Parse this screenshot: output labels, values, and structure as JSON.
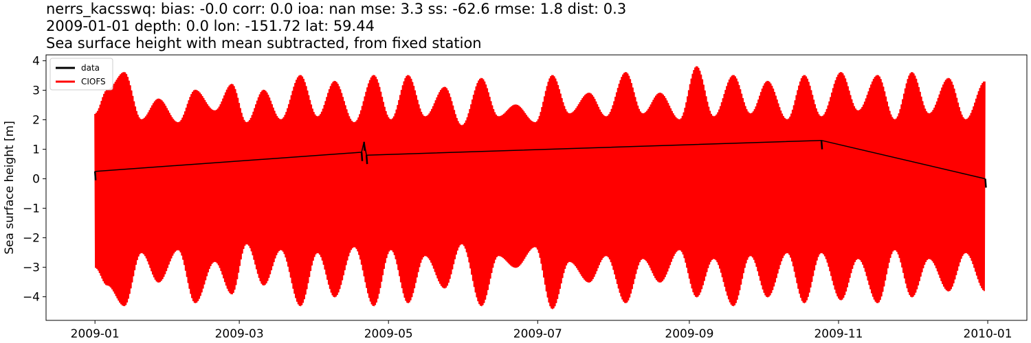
{
  "title_lines": [
    "nerrs_kacsswq: bias: -0.0  corr: 0.0  ioa: nan  mse: 3.3  ss: -62.6  rmse: 1.8  dist: 0.3",
    "2009-01-01 depth: 0.0 lon: -151.72 lat: 59.44",
    "Sea surface height with mean subtracted, from fixed station"
  ],
  "chart_data": {
    "type": "line",
    "ylabel": "Sea surface height [m]",
    "xlabel": "",
    "xlim": [
      "2008-12-12",
      "2010-01-17"
    ],
    "ylim": [
      -4.8,
      4.2
    ],
    "x_ticks": [
      "2009-01",
      "2009-03",
      "2009-05",
      "2009-07",
      "2009-09",
      "2009-11",
      "2010-01"
    ],
    "x_tick_dates": [
      "2009-01-01",
      "2009-03-01",
      "2009-05-01",
      "2009-07-01",
      "2009-09-01",
      "2009-11-01",
      "2010-01-01"
    ],
    "y_ticks": [
      -4,
      -3,
      -2,
      -1,
      0,
      1,
      2,
      3,
      4
    ],
    "legend": {
      "position": "top-left"
    },
    "series": [
      {
        "name": "data",
        "color": "#000000",
        "x": [
          "2009-01-01",
          "2009-04-20",
          "2009-04-21",
          "2009-04-22",
          "2009-10-25",
          "2009-12-31"
        ],
        "y": [
          0.25,
          0.9,
          1.25,
          0.8,
          1.3,
          0.0
        ]
      },
      {
        "name": "CIOFS",
        "color": "#ff0000",
        "x": [
          "2009-01-01",
          "2009-01-06",
          "2009-01-13",
          "2009-01-20",
          "2009-01-27",
          "2009-02-04",
          "2009-02-11",
          "2009-02-19",
          "2009-02-26",
          "2009-03-04",
          "2009-03-11",
          "2009-03-18",
          "2009-03-26",
          "2009-04-02",
          "2009-04-09",
          "2009-04-17",
          "2009-04-25",
          "2009-05-02",
          "2009-05-09",
          "2009-05-16",
          "2009-05-24",
          "2009-05-31",
          "2009-06-08",
          "2009-06-15",
          "2009-06-22",
          "2009-06-30",
          "2009-07-07",
          "2009-07-14",
          "2009-07-22",
          "2009-07-29",
          "2009-08-06",
          "2009-08-13",
          "2009-08-20",
          "2009-08-28",
          "2009-09-04",
          "2009-09-11",
          "2009-09-19",
          "2009-09-26",
          "2009-10-03",
          "2009-10-11",
          "2009-10-18",
          "2009-10-25",
          "2009-11-02",
          "2009-11-09",
          "2009-11-17",
          "2009-11-24",
          "2009-12-01",
          "2009-12-08",
          "2009-12-16",
          "2009-12-23",
          "2009-12-31"
        ],
        "y_max": [
          2.2,
          3.0,
          3.6,
          2.0,
          2.7,
          1.9,
          3.0,
          2.3,
          3.2,
          1.9,
          3.0,
          2.0,
          3.5,
          2.1,
          3.3,
          1.9,
          3.5,
          2.0,
          3.5,
          2.1,
          3.1,
          1.8,
          3.4,
          2.1,
          2.5,
          1.9,
          3.5,
          2.2,
          2.9,
          2.1,
          3.6,
          2.2,
          2.9,
          2.0,
          3.8,
          2.1,
          3.5,
          2.2,
          3.3,
          2.0,
          3.5,
          2.1,
          3.6,
          2.3,
          3.5,
          2.0,
          3.6,
          2.2,
          3.4,
          2.0,
          3.3
        ],
        "y_min": [
          -3.0,
          -3.6,
          -4.3,
          -2.5,
          -3.5,
          -2.4,
          -4.2,
          -2.8,
          -3.9,
          -2.2,
          -3.6,
          -2.4,
          -4.3,
          -2.5,
          -4.0,
          -2.3,
          -4.3,
          -2.4,
          -4.2,
          -2.6,
          -3.7,
          -2.2,
          -4.3,
          -2.6,
          -3.0,
          -2.3,
          -4.4,
          -2.8,
          -3.5,
          -2.6,
          -4.2,
          -2.7,
          -3.5,
          -2.4,
          -4.0,
          -2.7,
          -4.3,
          -2.6,
          -4.0,
          -2.5,
          -4.2,
          -2.5,
          -4.1,
          -2.7,
          -4.2,
          -2.4,
          -4.0,
          -2.7,
          -3.8,
          -2.5,
          -3.8
        ]
      }
    ]
  }
}
